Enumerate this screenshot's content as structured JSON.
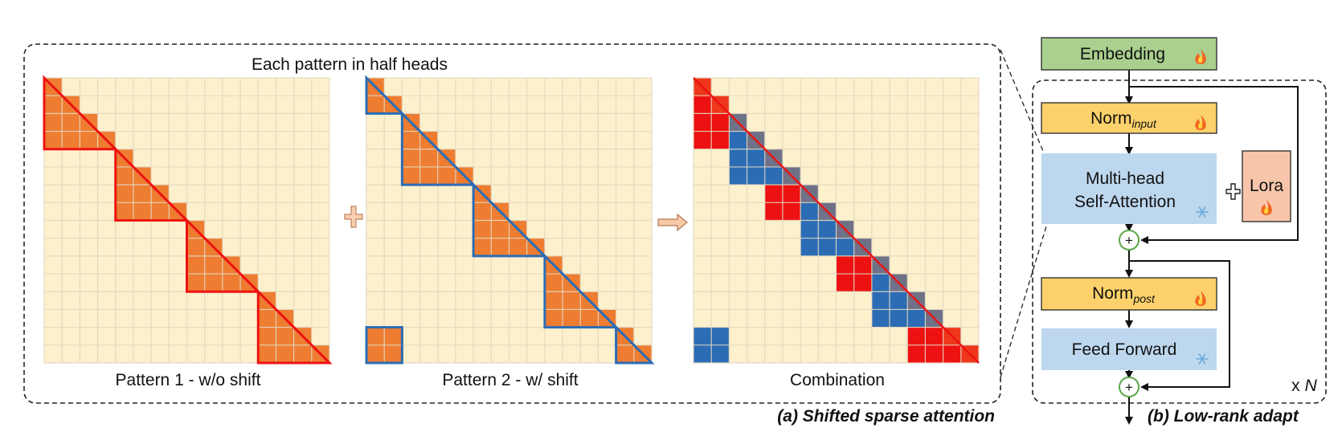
{
  "panel_a": {
    "top_title": "Each pattern in half heads",
    "caption": "(a) Shifted sparse attention",
    "grid_size": 16,
    "group_size": 4,
    "patterns": [
      {
        "label": "Pattern 1 - w/o shift",
        "shift": 0,
        "color": "#ee1111"
      },
      {
        "label": "Pattern 2 - w/ shift",
        "shift": 2,
        "color": "#2b6cb5"
      },
      {
        "label": "Combination",
        "shift": -1,
        "color": "#ee1111"
      }
    ],
    "plus_symbol": "+",
    "arrow_symbol": "arrow-right"
  },
  "panel_b": {
    "caption": "(b) Low-rank adapt",
    "embedding": "Embedding",
    "norm_input_base": "Norm",
    "norm_input_sub": "input",
    "attention_line1": "Multi-head",
    "attention_line2": "Self-Attention",
    "lora": "Lora",
    "norm_post_base": "Norm",
    "norm_post_sub": "post",
    "feed_forward": "Feed Forward",
    "repeat_x": "x",
    "repeat_n": "N",
    "add_symbol": "+",
    "combine_symbol": "+",
    "trainable_icon": "fire-icon",
    "frozen_icon": "snowflake-icon"
  },
  "colors": {
    "cell_bg": "#fdf0cd",
    "cell_line": "#e3d8c0",
    "orange": "#ee7d31",
    "red": "#ee1111",
    "blue": "#2b6cb5",
    "green": "#a9d08e",
    "yellow": "#fcd16b",
    "light_blue": "#bdd7ee",
    "salmon": "#f7c6aa"
  }
}
